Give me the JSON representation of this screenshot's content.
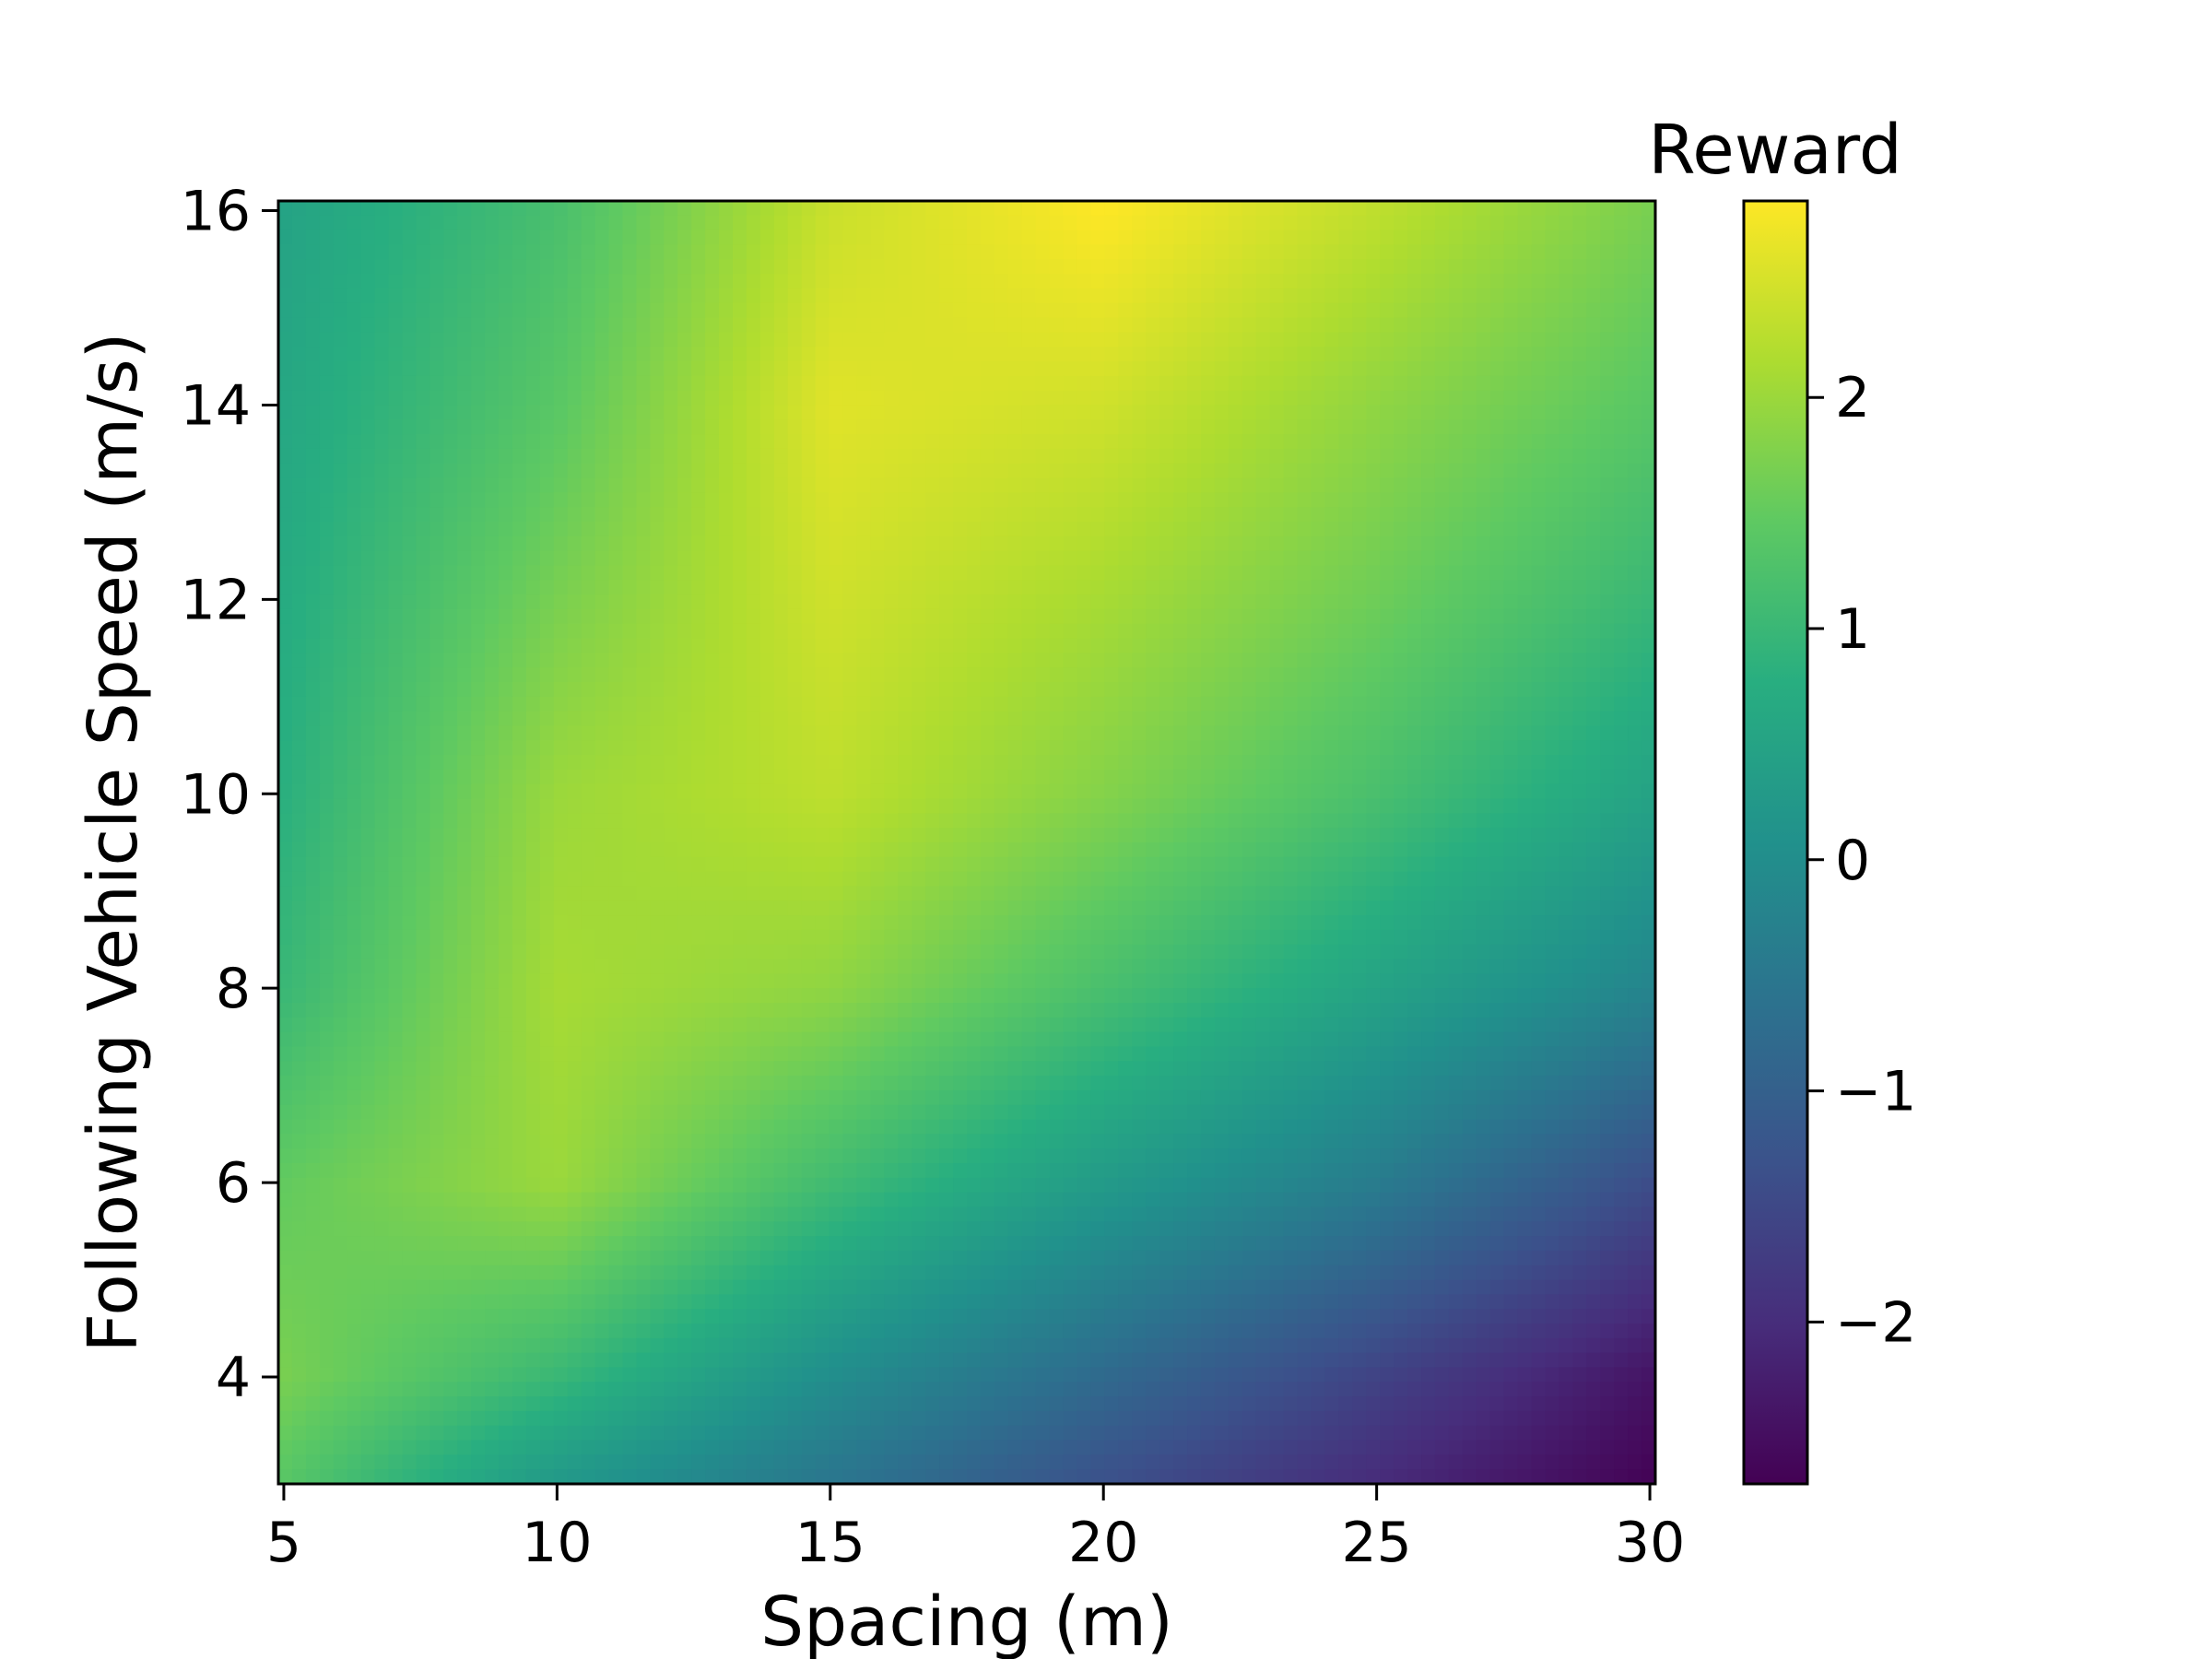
{
  "chart_data": {
    "type": "heatmap",
    "xlabel": "Spacing (m)",
    "ylabel": "Following Vehicle Speed (m/s)",
    "colorbar_label": "Reward",
    "colormap": "viridis",
    "xlim": [
      4.9,
      30.1
    ],
    "ylim": [
      2.9,
      16.1
    ],
    "zlim": [
      -2.7,
      2.85
    ],
    "x_ticks": [
      5,
      10,
      15,
      20,
      25,
      30
    ],
    "x_tick_labels": [
      "5",
      "10",
      "15",
      "20",
      "25",
      "30"
    ],
    "y_ticks": [
      4,
      6,
      8,
      10,
      12,
      14,
      16
    ],
    "y_tick_labels": [
      "4",
      "6",
      "8",
      "10",
      "12",
      "14",
      "16"
    ],
    "colorbar_ticks": [
      -2,
      -1,
      0,
      1,
      2
    ],
    "colorbar_tick_labels": [
      "−2",
      "−1",
      "0",
      "1",
      "2"
    ],
    "x": [
      5,
      10,
      15,
      20,
      25,
      30
    ],
    "y": [
      3,
      4,
      6,
      8,
      10,
      12,
      14,
      16
    ],
    "z": [
      [
        1.4,
        0.3,
        -0.5,
        -1.3,
        -2.0,
        -2.65
      ],
      [
        1.7,
        1.0,
        0.0,
        -0.8,
        -1.6,
        -2.4
      ],
      [
        1.5,
        2.0,
        1.1,
        0.3,
        -0.4,
        -1.4
      ],
      [
        1.0,
        2.1,
        1.9,
        1.2,
        0.5,
        -0.2
      ],
      [
        0.8,
        2.0,
        2.3,
        1.8,
        1.2,
        0.5
      ],
      [
        0.7,
        1.7,
        2.45,
        2.1,
        1.6,
        1.0
      ],
      [
        0.6,
        1.4,
        2.6,
        2.45,
        1.9,
        1.4
      ],
      [
        0.5,
        1.2,
        2.4,
        2.85,
        2.3,
        1.7
      ]
    ]
  }
}
